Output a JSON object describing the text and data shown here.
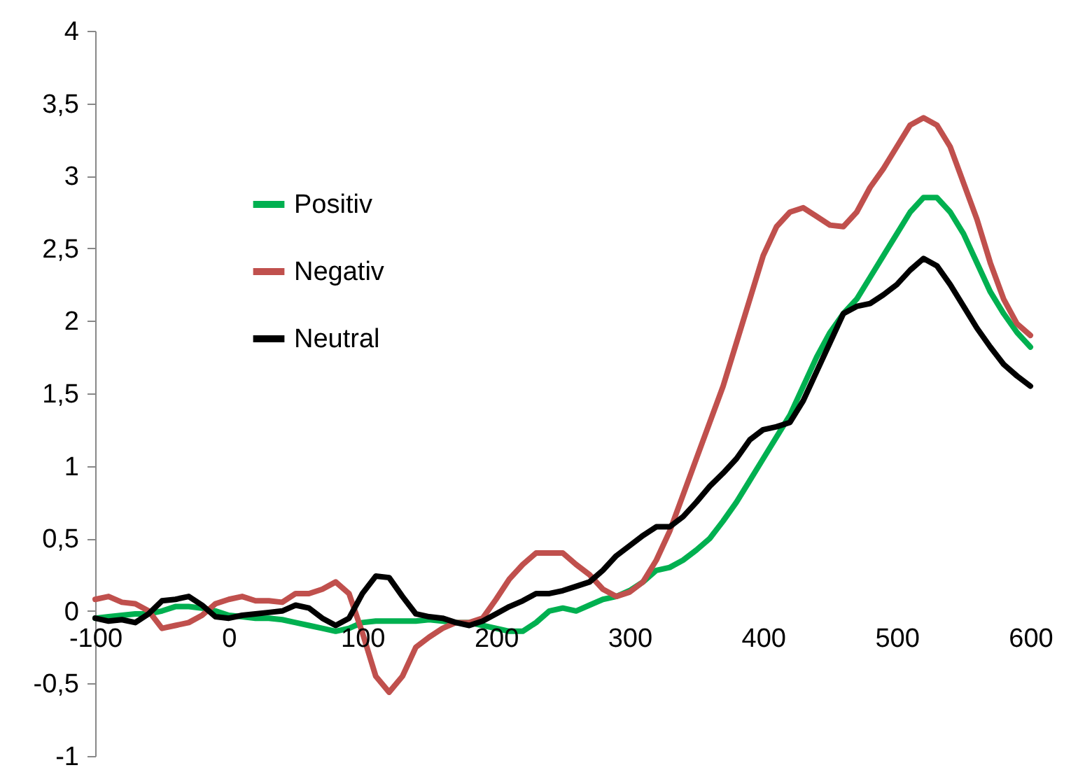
{
  "chart_data": {
    "type": "line",
    "x": [
      -100,
      -90,
      -80,
      -70,
      -60,
      -50,
      -40,
      -30,
      -20,
      -10,
      0,
      10,
      20,
      30,
      40,
      50,
      60,
      70,
      80,
      90,
      100,
      110,
      120,
      130,
      140,
      150,
      160,
      170,
      180,
      190,
      200,
      210,
      220,
      230,
      240,
      250,
      260,
      270,
      280,
      290,
      300,
      310,
      320,
      330,
      340,
      350,
      360,
      370,
      380,
      390,
      400,
      410,
      420,
      430,
      440,
      450,
      460,
      470,
      480,
      490,
      500,
      510,
      520,
      530,
      540,
      550,
      560,
      570,
      580,
      590,
      600
    ],
    "series": [
      {
        "name": "Positiv",
        "color": "#00b050",
        "values": [
          -0.05,
          -0.04,
          -0.03,
          -0.02,
          -0.02,
          0.0,
          0.03,
          0.03,
          0.02,
          0.0,
          -0.03,
          -0.04,
          -0.05,
          -0.05,
          -0.06,
          -0.08,
          -0.1,
          -0.12,
          -0.14,
          -0.12,
          -0.08,
          -0.07,
          -0.07,
          -0.07,
          -0.07,
          -0.06,
          -0.07,
          -0.08,
          -0.08,
          -0.1,
          -0.12,
          -0.14,
          -0.14,
          -0.08,
          0.0,
          0.02,
          0.0,
          0.04,
          0.08,
          0.1,
          0.14,
          0.2,
          0.28,
          0.3,
          0.35,
          0.42,
          0.5,
          0.62,
          0.75,
          0.9,
          1.05,
          1.2,
          1.35,
          1.55,
          1.75,
          1.92,
          2.05,
          2.15,
          2.3,
          2.45,
          2.6,
          2.75,
          2.85,
          2.85,
          2.75,
          2.6,
          2.4,
          2.2,
          2.05,
          1.92,
          1.82
        ]
      },
      {
        "name": "Negativ",
        "color": "#c0504d",
        "values": [
          0.08,
          0.1,
          0.06,
          0.05,
          0.0,
          -0.12,
          -0.1,
          -0.08,
          -0.03,
          0.05,
          0.08,
          0.1,
          0.07,
          0.07,
          0.06,
          0.12,
          0.12,
          0.15,
          0.2,
          0.12,
          -0.15,
          -0.45,
          -0.56,
          -0.45,
          -0.25,
          -0.18,
          -0.12,
          -0.08,
          -0.08,
          -0.05,
          0.08,
          0.22,
          0.32,
          0.4,
          0.4,
          0.4,
          0.32,
          0.25,
          0.15,
          0.1,
          0.13,
          0.2,
          0.35,
          0.55,
          0.8,
          1.05,
          1.3,
          1.55,
          1.85,
          2.15,
          2.45,
          2.65,
          2.75,
          2.78,
          2.72,
          2.66,
          2.65,
          2.75,
          2.92,
          3.05,
          3.2,
          3.35,
          3.4,
          3.35,
          3.2,
          2.95,
          2.7,
          2.4,
          2.15,
          1.98,
          1.9
        ]
      },
      {
        "name": "Neutral",
        "color": "#000000",
        "values": [
          -0.05,
          -0.07,
          -0.06,
          -0.08,
          -0.02,
          0.07,
          0.08,
          0.1,
          0.04,
          -0.04,
          -0.05,
          -0.03,
          -0.02,
          -0.01,
          0.0,
          0.04,
          0.02,
          -0.05,
          -0.1,
          -0.05,
          0.12,
          0.24,
          0.23,
          0.1,
          -0.02,
          -0.04,
          -0.05,
          -0.08,
          -0.1,
          -0.07,
          -0.02,
          0.03,
          0.07,
          0.12,
          0.12,
          0.14,
          0.17,
          0.2,
          0.28,
          0.38,
          0.45,
          0.52,
          0.58,
          0.58,
          0.65,
          0.75,
          0.86,
          0.95,
          1.05,
          1.18,
          1.25,
          1.27,
          1.3,
          1.45,
          1.65,
          1.85,
          2.05,
          2.1,
          2.12,
          2.18,
          2.25,
          2.35,
          2.43,
          2.38,
          2.25,
          2.1,
          1.95,
          1.82,
          1.7,
          1.62,
          1.55
        ]
      }
    ],
    "xlim": [
      -100,
      600
    ],
    "xticks": [
      -100,
      0,
      100,
      200,
      300,
      400,
      500,
      600
    ],
    "ylim": [
      -1,
      4
    ],
    "yticks": [
      {
        "value": -1,
        "label": "-1"
      },
      {
        "value": -0.5,
        "label": "-0,5"
      },
      {
        "value": 0,
        "label": "0"
      },
      {
        "value": 0.5,
        "label": "0,5"
      },
      {
        "value": 1,
        "label": "1"
      },
      {
        "value": 1.5,
        "label": "1,5"
      },
      {
        "value": 2,
        "label": "2"
      },
      {
        "value": 2.5,
        "label": "2,5"
      },
      {
        "value": 3,
        "label": "3"
      },
      {
        "value": 3.5,
        "label": "3,5"
      },
      {
        "value": 4,
        "label": "4"
      }
    ],
    "legend": "top left",
    "line_style": "solid"
  }
}
